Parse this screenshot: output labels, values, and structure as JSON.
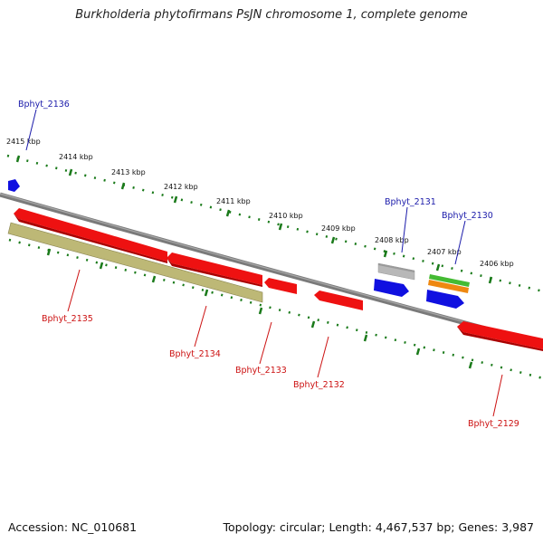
{
  "title": "Burkholderia phytofirmans PsJN chromosome 1, complete genome",
  "footer": {
    "accession_label": "Accession:",
    "accession": "NC_010681",
    "topology_label": "Topology:",
    "topology": "circular;",
    "length_label": "Length:",
    "length": "4,467,537 bp;",
    "genes_label": "Genes:",
    "genes": "3,987"
  },
  "ruler_labels": [
    "2415 kbp",
    "2414 kbp",
    "2413 kbp",
    "2412 kbp",
    "2411 kbp",
    "2410 kbp",
    "2409 kbp",
    "2408 kbp",
    "2407 kbp",
    "2406 kbp"
  ],
  "genes_top": [
    "Bphyt_2136",
    "Bphyt_2131",
    "Bphyt_2130"
  ],
  "genes_bottom": [
    "Bphyt_2135",
    "Bphyt_2134",
    "Bphyt_2133",
    "Bphyt_2132",
    "Bphyt_2129"
  ],
  "colors": {
    "forward_gene": "#1010e0",
    "reverse_gene": "#ee1111",
    "pseudo_gene": "#bdb876",
    "rna_gray": "#b8b8b8",
    "rna_green": "#44bb33",
    "rna_orange": "#ee8811",
    "backbone": "#7a7a7a",
    "ruler_dots": "#1a7a1a",
    "title_text": "#222222"
  }
}
